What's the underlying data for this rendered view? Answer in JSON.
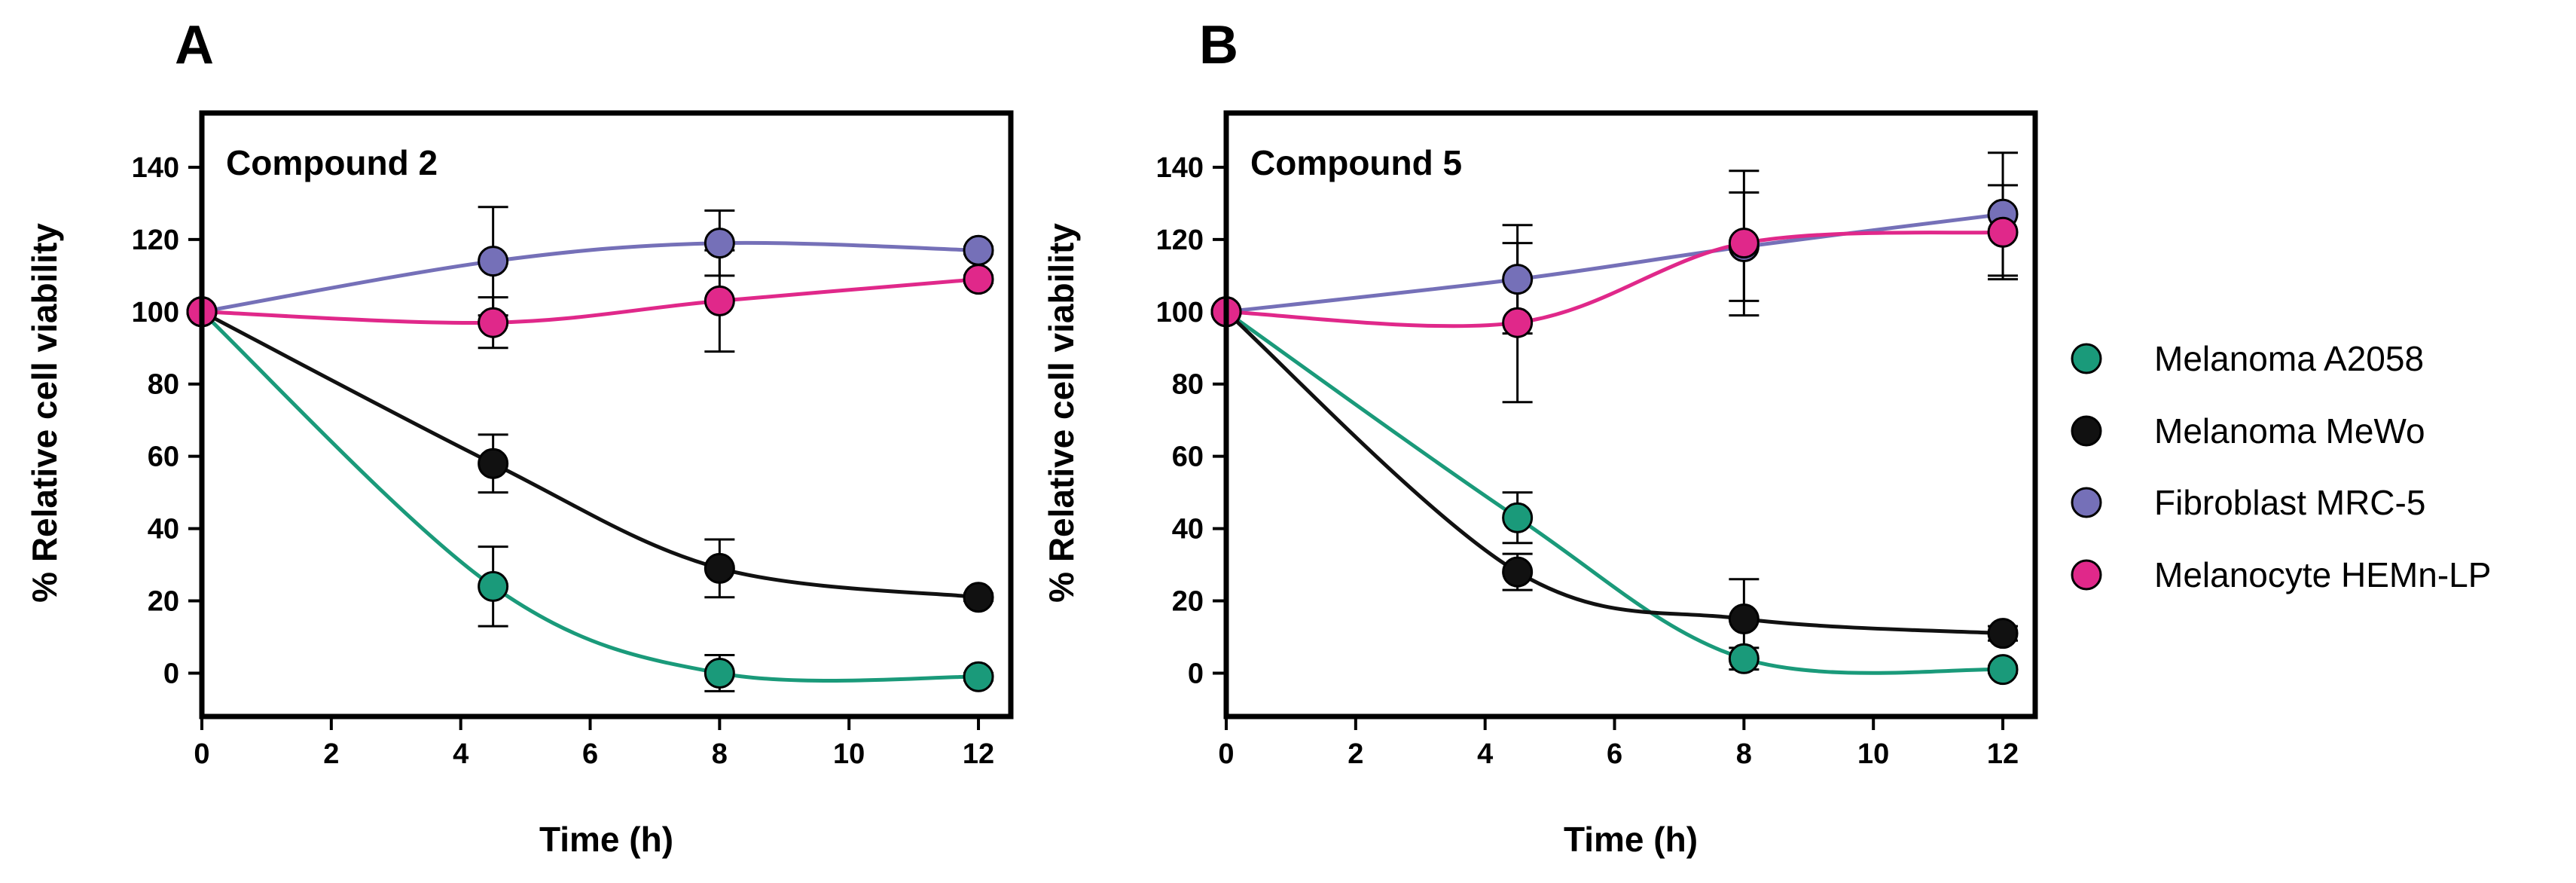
{
  "figure": {
    "panels": [
      {
        "letter": "A"
      },
      {
        "letter": "B"
      }
    ]
  },
  "legend": {
    "position": "right",
    "entries": [
      {
        "name": "Melanoma A2058",
        "color": "#1a9a7a"
      },
      {
        "name": "Melanoma MeWo",
        "color": "#111111"
      },
      {
        "name": "Fibroblast MRC-5",
        "color": "#7570b8"
      },
      {
        "name": "Melanocyte HEMn-LP",
        "color": "#e0288a"
      }
    ]
  },
  "chart_data": [
    {
      "type": "line",
      "panel": "A",
      "title": "Compound 2",
      "xlabel": "Time (h)",
      "ylabel": "% Relative cell viability",
      "xlim": [
        0,
        12.5
      ],
      "ylim": [
        -12,
        155
      ],
      "xticks": [
        0,
        2,
        4,
        6,
        8,
        10,
        12
      ],
      "yticks": [
        0,
        20,
        40,
        60,
        80,
        100,
        120,
        140
      ],
      "grid": false,
      "x": [
        0,
        4.5,
        8,
        12
      ],
      "series": [
        {
          "name": "Melanoma A2058",
          "color": "#1a9a7a",
          "values": [
            100,
            24,
            0,
            -1
          ],
          "errors": [
            0,
            11,
            5,
            1
          ]
        },
        {
          "name": "Melanoma MeWo",
          "color": "#111111",
          "values": [
            100,
            58,
            29,
            21
          ],
          "errors": [
            0,
            8,
            8,
            1
          ]
        },
        {
          "name": "Fibroblast MRC-5",
          "color": "#7570b8",
          "values": [
            100,
            114,
            119,
            117
          ],
          "errors": [
            0,
            15,
            9,
            1
          ]
        },
        {
          "name": "Melanocyte HEMn-LP",
          "color": "#e0288a",
          "values": [
            100,
            97,
            103,
            109
          ],
          "errors": [
            0,
            7,
            14,
            1
          ]
        }
      ]
    },
    {
      "type": "line",
      "panel": "B",
      "title": "Compound 5",
      "xlabel": "Time (h)",
      "ylabel": "% Relative cell viability",
      "xlim": [
        0,
        12.5
      ],
      "ylim": [
        -12,
        155
      ],
      "xticks": [
        0,
        2,
        4,
        6,
        8,
        10,
        12
      ],
      "yticks": [
        0,
        20,
        40,
        60,
        80,
        100,
        120,
        140
      ],
      "grid": false,
      "x": [
        0,
        4.5,
        8,
        12
      ],
      "series": [
        {
          "name": "Melanoma A2058",
          "color": "#1a9a7a",
          "values": [
            100,
            43,
            4,
            1
          ],
          "errors": [
            0,
            7,
            3,
            1
          ]
        },
        {
          "name": "Melanoma MeWo",
          "color": "#111111",
          "values": [
            100,
            28,
            15,
            11
          ],
          "errors": [
            0,
            5,
            11,
            2
          ]
        },
        {
          "name": "Fibroblast MRC-5",
          "color": "#7570b8",
          "values": [
            100,
            109,
            118,
            127
          ],
          "errors": [
            0,
            15,
            15,
            17
          ]
        },
        {
          "name": "Melanocyte HEMn-LP",
          "color": "#e0288a",
          "values": [
            100,
            97,
            119,
            122
          ],
          "errors": [
            0,
            22,
            20,
            13
          ]
        }
      ]
    }
  ]
}
